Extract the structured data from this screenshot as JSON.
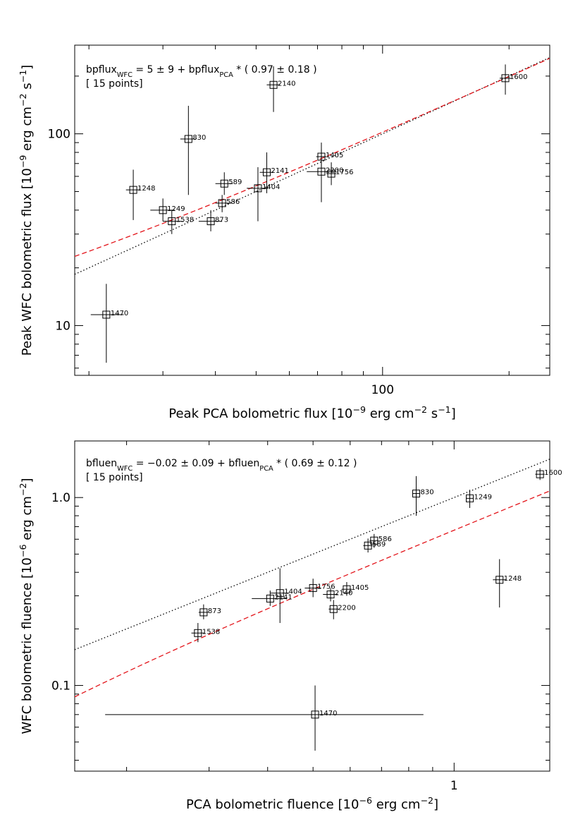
{
  "chart_data": [
    {
      "type": "scatter",
      "xlabel": {
        "main": "Peak PCA bolometric flux ",
        "sub": null,
        "unit": [
          [
            "text",
            "[10"
          ],
          [
            "sup",
            "−9"
          ],
          [
            "text",
            " erg cm"
          ],
          [
            "sup",
            "−2"
          ],
          [
            "text",
            " s"
          ],
          [
            "sup",
            "−1"
          ],
          [
            "text",
            "]"
          ]
        ]
      },
      "ylabel": {
        "main": "Peak WFC bolometric flux ",
        "unit": [
          [
            "text",
            "[10"
          ],
          [
            "sup",
            "−9"
          ],
          [
            "text",
            " erg cm"
          ],
          [
            "sup",
            "−2"
          ],
          [
            "text",
            " s"
          ],
          [
            "sup",
            "−1"
          ],
          [
            "text",
            "]"
          ]
        ]
      },
      "xscale": "log",
      "yscale": "log",
      "xlim": [
        18.5,
        250
      ],
      "ylim": [
        5.5,
        290
      ],
      "x_ticks": [
        {
          "value": 100,
          "label": "100"
        }
      ],
      "y_ticks": [
        {
          "value": 10,
          "label": "10"
        },
        {
          "value": 100,
          "label": "100"
        }
      ],
      "annotation_lines": [
        [
          [
            "text",
            "bpflux"
          ],
          [
            "sub",
            "WFC"
          ],
          [
            "text",
            " = 5 ± 9 + bpflux"
          ],
          [
            "sub",
            "PCA"
          ],
          [
            "text",
            " * ( 0.97 ± 0.18 )"
          ]
        ],
        [
          [
            "text",
            "[ 15 points]"
          ]
        ]
      ],
      "fit_red": {
        "intercept": 5,
        "slope": 0.97,
        "color": "#e3141a",
        "style": "dashed"
      },
      "identity": {
        "color": "#000000",
        "style": "dotted"
      },
      "points": [
        {
          "label": "1470",
          "x": 22.0,
          "y": 11.4,
          "xerr": [
            20.2,
            24.2
          ],
          "yerr": [
            6.4,
            16.5
          ]
        },
        {
          "label": "1248",
          "x": 25.5,
          "y": 51.0,
          "xerr": [
            24.5,
            26.5
          ],
          "yerr": [
            35.5,
            65.0
          ]
        },
        {
          "label": "1249",
          "x": 30.0,
          "y": 40.0,
          "xerr": [
            28.0,
            32.0
          ],
          "yerr": [
            35.0,
            46.0
          ]
        },
        {
          "label": "1538",
          "x": 31.5,
          "y": 35.0,
          "xerr": [
            30.0,
            33.5
          ],
          "yerr": [
            30.0,
            40.0
          ]
        },
        {
          "label": "830",
          "x": 34.5,
          "y": 94.0,
          "xerr": [
            33.0,
            36.0
          ],
          "yerr": [
            48.0,
            140.0
          ]
        },
        {
          "label": "873",
          "x": 39.0,
          "y": 35.0,
          "xerr": [
            36.5,
            41.5
          ],
          "yerr": [
            31.0,
            40.0
          ]
        },
        {
          "label": "586",
          "x": 41.5,
          "y": 43.5,
          "xerr": [
            40.0,
            43.5
          ],
          "yerr": [
            39.0,
            48.0
          ]
        },
        {
          "label": "589",
          "x": 42.0,
          "y": 55.0,
          "xerr": [
            40.0,
            44.0
          ],
          "yerr": [
            48.0,
            63.0
          ]
        },
        {
          "label": "1404",
          "x": 50.5,
          "y": 52.0,
          "xerr": [
            47.5,
            53.5
          ],
          "yerr": [
            35.0,
            67.0
          ]
        },
        {
          "label": "2141",
          "x": 53.0,
          "y": 63.0,
          "xerr": [
            51.0,
            55.0
          ],
          "yerr": [
            49.0,
            80.0
          ]
        },
        {
          "label": "2140",
          "x": 55.0,
          "y": 180.0,
          "xerr": [
            53.0,
            57.0
          ],
          "yerr": [
            130.0,
            225.0
          ]
        },
        {
          "label": "2200",
          "x": 71.5,
          "y": 63.5,
          "xerr": [
            66.0,
            77.0
          ],
          "yerr": [
            44.0,
            83.0
          ]
        },
        {
          "label": "1405",
          "x": 71.5,
          "y": 76.0,
          "xerr": [
            69.5,
            73.5
          ],
          "yerr": [
            67.0,
            90.0
          ]
        },
        {
          "label": "1756",
          "x": 75.5,
          "y": 62.0,
          "xerr": [
            73.5,
            77.5
          ],
          "yerr": [
            54.0,
            71.0
          ]
        },
        {
          "label": "1600",
          "x": 196.0,
          "y": 195.0,
          "xerr": [
            190.0,
            202.0
          ],
          "yerr": [
            160.0,
            230.0
          ]
        }
      ]
    },
    {
      "type": "scatter",
      "xlabel": {
        "main": "PCA bolometric fluence ",
        "unit": [
          [
            "text",
            "[10"
          ],
          [
            "sup",
            "−6"
          ],
          [
            "text",
            " erg cm"
          ],
          [
            "sup",
            "−2"
          ],
          [
            "text",
            "]"
          ]
        ]
      },
      "ylabel": {
        "main": "WFC bolometric fluence ",
        "unit": [
          [
            "text",
            "[10"
          ],
          [
            "sup",
            "−6"
          ],
          [
            "text",
            " erg cm"
          ],
          [
            "sup",
            "−2"
          ],
          [
            "text",
            "]"
          ]
        ]
      },
      "xscale": "log",
      "yscale": "log",
      "xlim": [
        0.155,
        1.6
      ],
      "ylim": [
        0.035,
        2.0
      ],
      "x_ticks": [
        {
          "value": 1,
          "label": "1"
        }
      ],
      "y_ticks": [
        {
          "value": 0.1,
          "label": "0.1"
        },
        {
          "value": 1,
          "label": "1.0"
        }
      ],
      "annotation_lines": [
        [
          [
            "text",
            "bfluen"
          ],
          [
            "sub",
            "WFC"
          ],
          [
            "text",
            " = −0.02 ± 0.09 + bfluen"
          ],
          [
            "sub",
            "PCA"
          ],
          [
            "text",
            " * ( 0.69 ± 0.12 )"
          ]
        ],
        [
          [
            "text",
            "[ 15 points]"
          ]
        ]
      ],
      "fit_red": {
        "intercept": -0.02,
        "slope": 0.69,
        "color": "#e3141a",
        "style": "dashed"
      },
      "identity": {
        "color": "#000000",
        "style": "dotted"
      },
      "points": [
        {
          "label": "1470",
          "x": 0.505,
          "y": 0.07,
          "xerr": [
            0.18,
            0.86
          ],
          "yerr": [
            0.045,
            0.1
          ]
        },
        {
          "label": "1538",
          "x": 0.284,
          "y": 0.19,
          "xerr": [
            0.275,
            0.293
          ],
          "yerr": [
            0.17,
            0.215
          ]
        },
        {
          "label": "873",
          "x": 0.292,
          "y": 0.245,
          "xerr": [
            0.285,
            0.299
          ],
          "yerr": [
            0.225,
            0.27
          ]
        },
        {
          "label": "2141",
          "x": 0.405,
          "y": 0.29,
          "xerr": [
            0.37,
            0.44
          ],
          "yerr": [
            0.265,
            0.32
          ]
        },
        {
          "label": "1404",
          "x": 0.425,
          "y": 0.31,
          "xerr": [
            0.405,
            0.445
          ],
          "yerr": [
            0.215,
            0.42
          ]
        },
        {
          "label": "1756",
          "x": 0.5,
          "y": 0.33,
          "xerr": [
            0.48,
            0.52
          ],
          "yerr": [
            0.295,
            0.37
          ]
        },
        {
          "label": "2140",
          "x": 0.545,
          "y": 0.305,
          "xerr": [
            0.525,
            0.565
          ],
          "yerr": [
            0.28,
            0.33
          ]
        },
        {
          "label": "2200",
          "x": 0.553,
          "y": 0.255,
          "xerr": [
            0.54,
            0.567
          ],
          "yerr": [
            0.225,
            0.285
          ]
        },
        {
          "label": "1405",
          "x": 0.59,
          "y": 0.325,
          "xerr": [
            0.575,
            0.605
          ],
          "yerr": [
            0.3,
            0.355
          ]
        },
        {
          "label": "589",
          "x": 0.655,
          "y": 0.555,
          "xerr": [
            0.64,
            0.67
          ],
          "yerr": [
            0.51,
            0.605
          ]
        },
        {
          "label": "586",
          "x": 0.675,
          "y": 0.59,
          "xerr": [
            0.66,
            0.69
          ],
          "yerr": [
            0.54,
            0.64
          ]
        },
        {
          "label": "830",
          "x": 0.83,
          "y": 1.05,
          "xerr": [
            0.815,
            0.845
          ],
          "yerr": [
            0.8,
            1.3
          ]
        },
        {
          "label": "1249",
          "x": 1.08,
          "y": 0.99,
          "xerr": [
            1.06,
            1.1
          ],
          "yerr": [
            0.88,
            1.1
          ]
        },
        {
          "label": "1248",
          "x": 1.25,
          "y": 0.365,
          "xerr": [
            1.21,
            1.29
          ],
          "yerr": [
            0.26,
            0.47
          ]
        },
        {
          "label": "1600",
          "x": 1.525,
          "y": 1.33,
          "xerr": [
            1.49,
            1.56
          ],
          "yerr": [
            1.24,
            1.43
          ]
        }
      ]
    }
  ]
}
